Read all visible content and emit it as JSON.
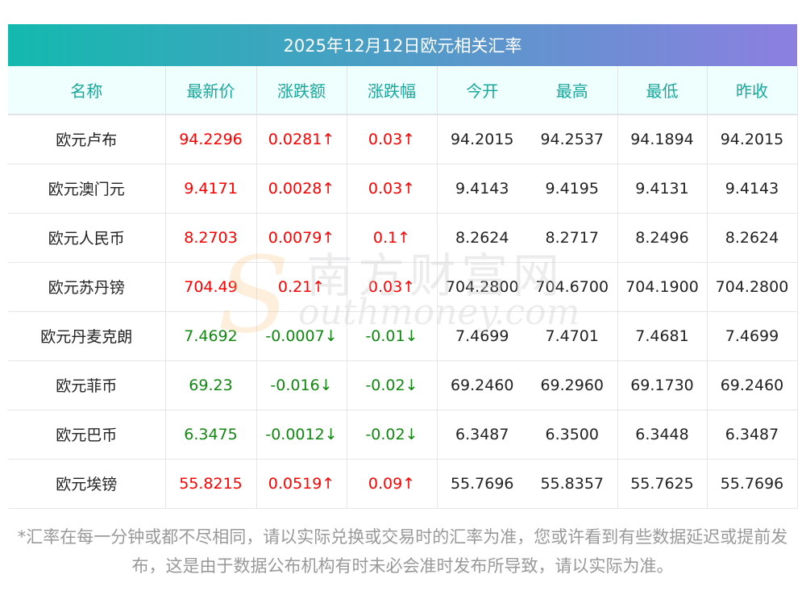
{
  "title": "2025年12月12日欧元相关汇率",
  "headers": [
    "名称",
    "最新价",
    "涨跌额",
    "涨跌幅",
    "今开",
    "最高",
    "最低",
    "昨收"
  ],
  "rows": [
    {
      "name": "欧元卢布",
      "price": "94.2296",
      "change": "0.0281↑",
      "pct": "0.03↑",
      "open": "94.2015",
      "high": "94.2537",
      "low": "94.1894",
      "prev": "94.2015",
      "dir": "up"
    },
    {
      "name": "欧元澳门元",
      "price": "9.4171",
      "change": "0.0028↑",
      "pct": "0.03↑",
      "open": "9.4143",
      "high": "9.4195",
      "low": "9.4131",
      "prev": "9.4143",
      "dir": "up"
    },
    {
      "name": "欧元人民币",
      "price": "8.2703",
      "change": "0.0079↑",
      "pct": "0.1↑",
      "open": "8.2624",
      "high": "8.2717",
      "low": "8.2496",
      "prev": "8.2624",
      "dir": "up"
    },
    {
      "name": "欧元苏丹镑",
      "price": "704.49",
      "change": "0.21↑",
      "pct": "0.03↑",
      "open": "704.2800",
      "high": "704.6700",
      "low": "704.1900",
      "prev": "704.2800",
      "dir": "up"
    },
    {
      "name": "欧元丹麦克朗",
      "price": "7.4692",
      "change": "-0.0007↓",
      "pct": "-0.01↓",
      "open": "7.4699",
      "high": "7.4701",
      "low": "7.4681",
      "prev": "7.4699",
      "dir": "down"
    },
    {
      "name": "欧元菲币",
      "price": "69.23",
      "change": "-0.016↓",
      "pct": "-0.02↓",
      "open": "69.2460",
      "high": "69.2960",
      "low": "69.1730",
      "prev": "69.2460",
      "dir": "down"
    },
    {
      "name": "欧元巴币",
      "price": "6.3475",
      "change": "-0.0012↓",
      "pct": "-0.02↓",
      "open": "6.3487",
      "high": "6.3500",
      "low": "6.3448",
      "prev": "6.3487",
      "dir": "down"
    },
    {
      "name": "欧元埃镑",
      "price": "55.8215",
      "change": "0.0519↑",
      "pct": "0.09↑",
      "open": "55.7696",
      "high": "55.8357",
      "low": "55.7625",
      "prev": "55.7696",
      "dir": "up"
    }
  ],
  "watermark": {
    "cn": "南方财富网",
    "en": "outhmoney.com",
    "s": "S"
  },
  "note": "*汇率在每一分钟或都不尽相同，请以实际兑换或交易时的汇率为准，您或许看到有些数据延迟或提前发布，这是由于数据公布机构有时未必会准时发布所导致，请以实际为准。"
}
